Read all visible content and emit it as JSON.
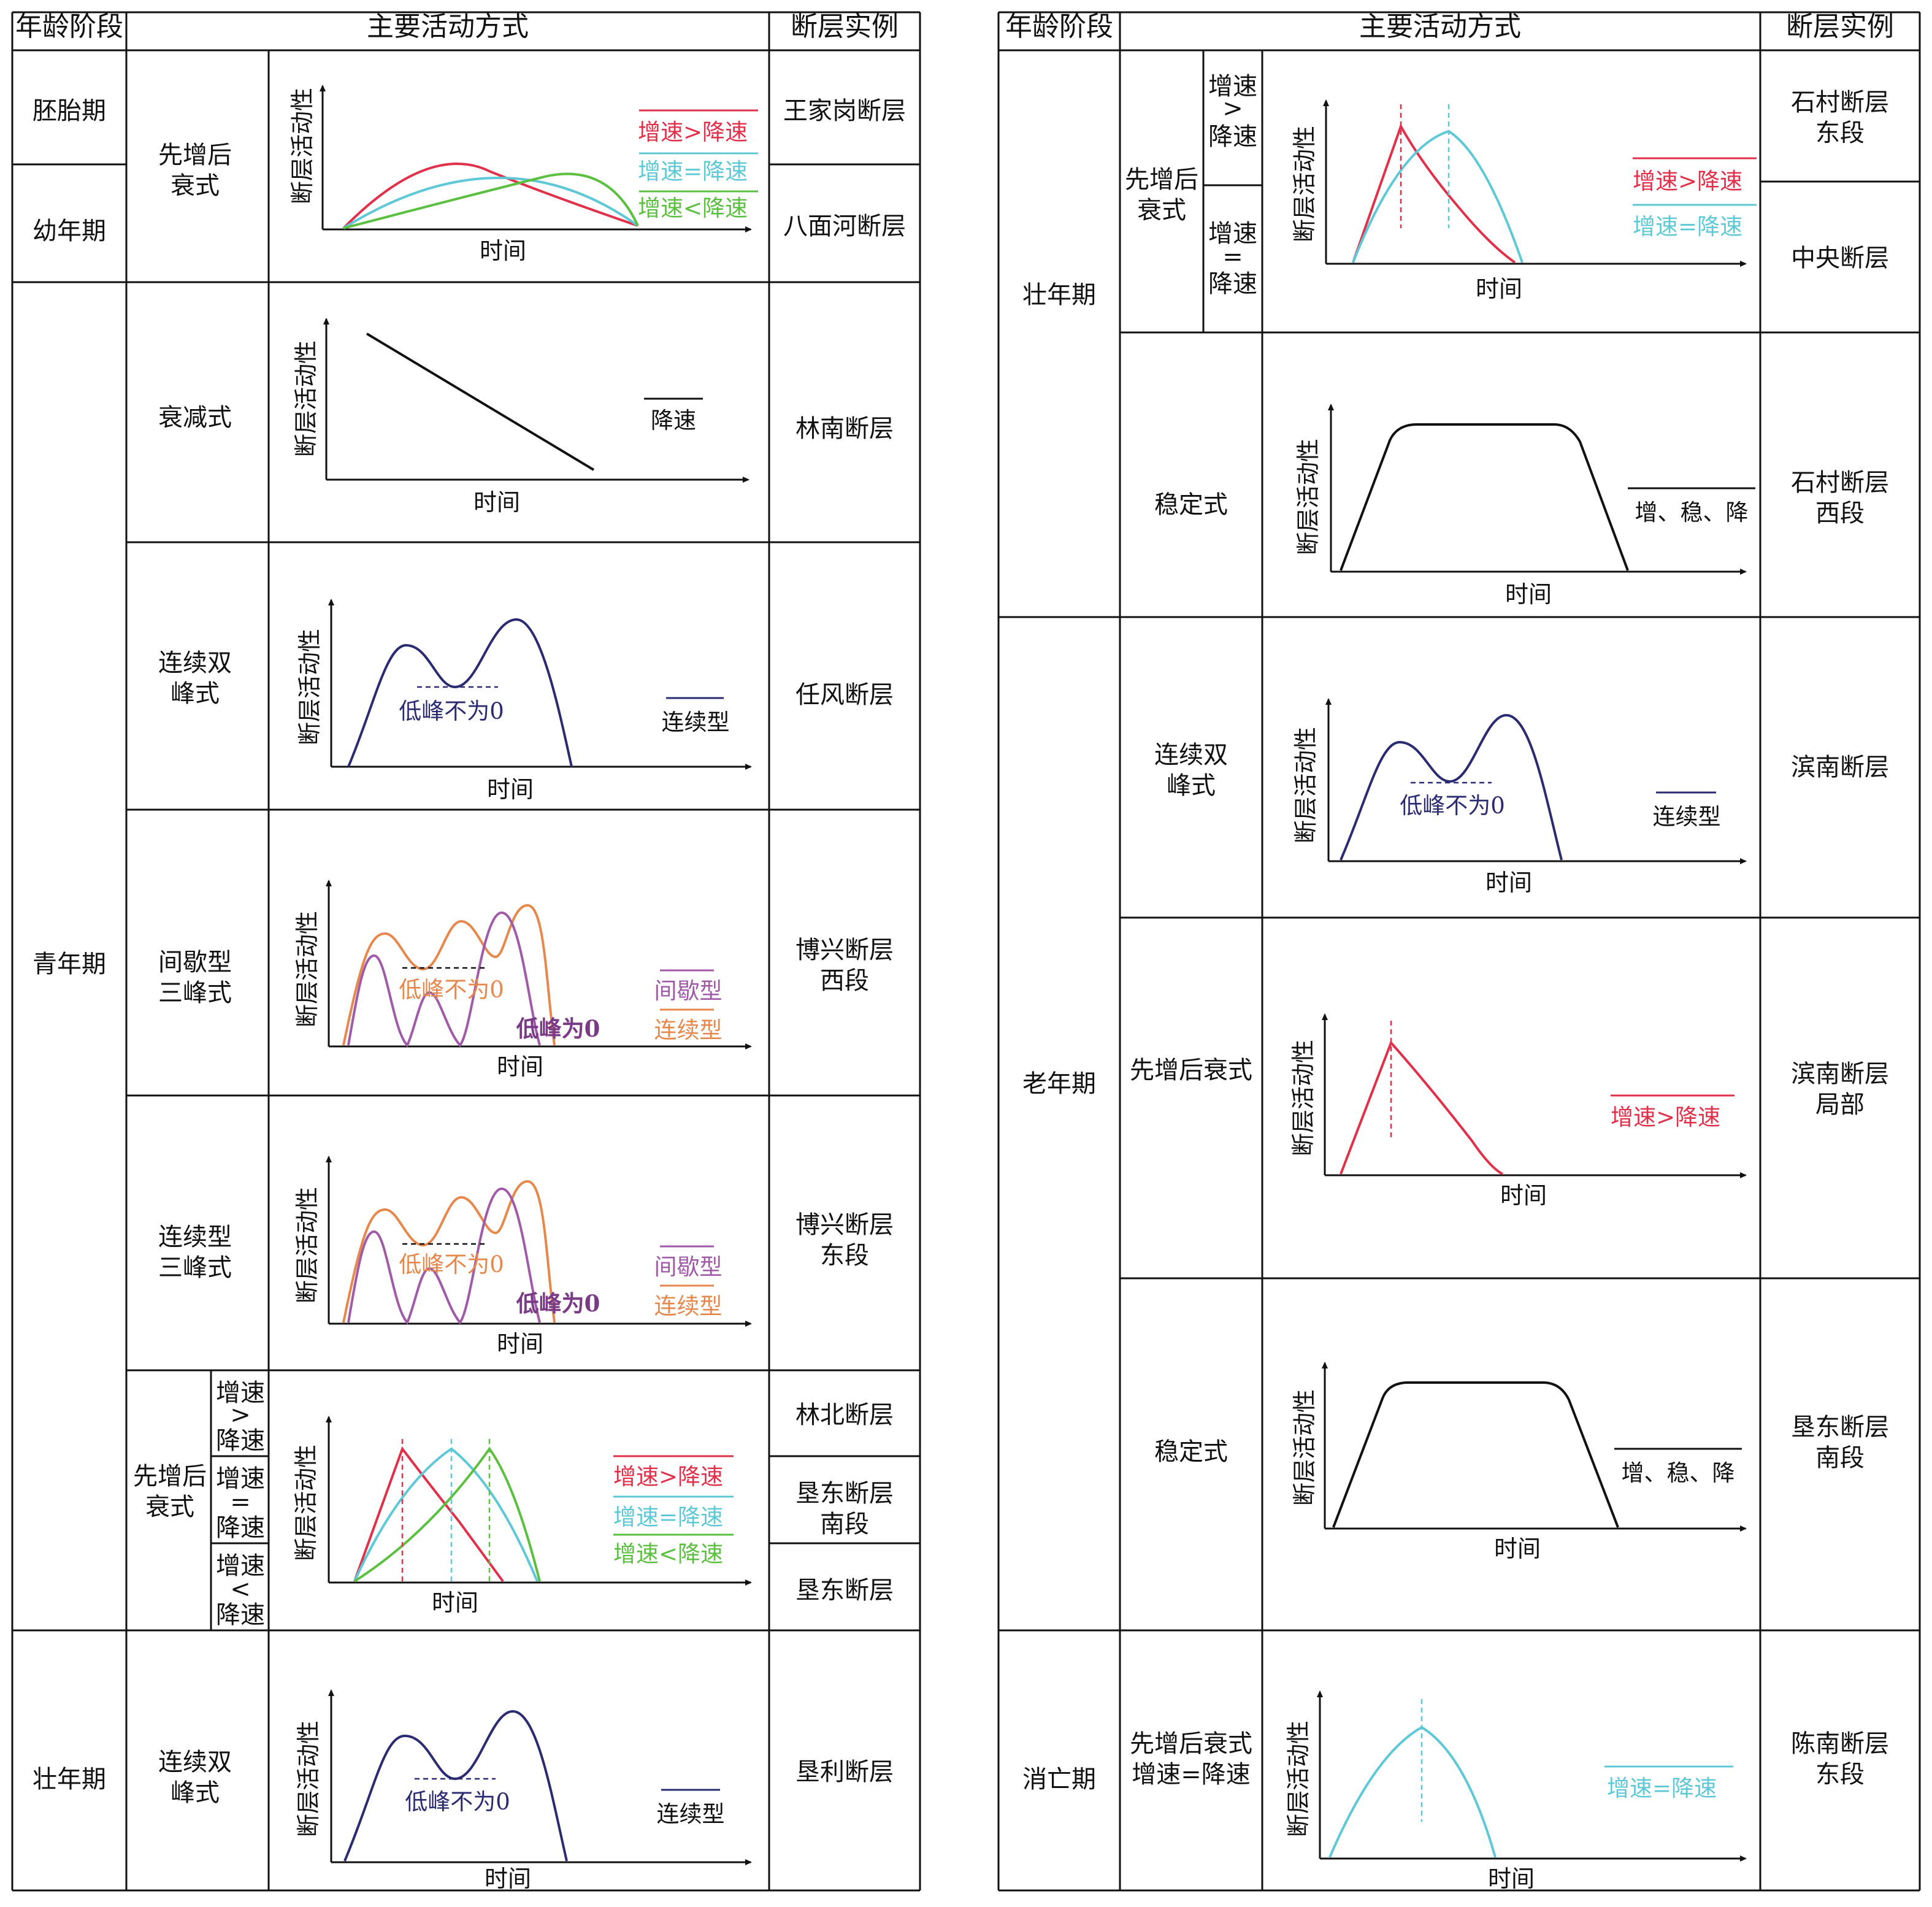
{
  "headers": {
    "age_left": "年龄阶段",
    "mode_left": "主要活动方式",
    "example_left": "断层实例",
    "age_right": "年龄阶段",
    "mode_right": "主要活动方式",
    "example_right": "断层实例"
  },
  "axis": {
    "y": "断层活动性",
    "x": "时间"
  },
  "ages": {
    "embryo": "胚胎期",
    "young": "幼年期",
    "youth": "青年期",
    "prime_left": "壮年期",
    "prime_right": "壮年期",
    "old": "老年期",
    "extinct": "消亡期"
  },
  "modes": {
    "first_inc_dec": "先增后衰式",
    "decay": "衰减式",
    "double_peak": "连续双峰式",
    "intermittent_triple": "间歇型三峰式",
    "continuous_triple": "连续型三峰式",
    "stable": "稳定式",
    "first_inc_dec_equal": "先增后衰式增速=降速"
  },
  "sub": {
    "gt_1": "增速",
    "gt_2": ">",
    "gt_3": "降速",
    "eq_1": "增速",
    "eq_2": "=",
    "eq_3": "降速",
    "lt_1": "增速",
    "lt_2": "<",
    "lt_3": "降速"
  },
  "legend": {
    "gt": "增速>降速",
    "eq": "增速=降速",
    "lt": "增速<降速",
    "decel": "降速",
    "continuous": "连续型",
    "intermittent": "间歇型",
    "stable": "增、稳、降"
  },
  "notes": {
    "trough_nonzero": "低峰不为0",
    "trough_zero": "低峰为0"
  },
  "examples": {
    "wangjiagang": "王家岗断层",
    "bamianhe": "八面河断层",
    "linnan": "林南断层",
    "renfeng": "任风断层",
    "boxing_west": "博兴断层西段",
    "boxing_east": "博兴断层东段",
    "linbei": "林北断层",
    "kendong_south": "垦东断层南段",
    "kendong": "垦东断层",
    "kenli": "垦利断层",
    "shicun_east": "石村断层东段",
    "central": "中央断层",
    "shicun_west": "石村断层西段",
    "binnan": "滨南断层",
    "binnan_local": "滨南断层局部",
    "kendong_south_r": "垦东断层南段",
    "chennan_east": "陈南断层东段"
  },
  "colors": {
    "gt": "#e0304a",
    "eq": "#5ec8d6",
    "lt": "#5bbf40",
    "continuous": "#2b2b72",
    "intermittent": "#a05aa8",
    "cont_orange": "#e6884c",
    "stable": "#111111"
  },
  "chart_data": [
    {
      "chart": "embryo-young",
      "type": "line",
      "series": [
        {
          "name": "增速>降速"
        },
        {
          "name": "增速=降速"
        },
        {
          "name": "增速<降速"
        }
      ]
    },
    {
      "chart": "youth-decay",
      "type": "line",
      "series": [
        {
          "name": "降速"
        }
      ]
    },
    {
      "chart": "youth-double",
      "type": "line",
      "series": [
        {
          "name": "连续型"
        }
      ]
    },
    {
      "chart": "youth-intermittent",
      "type": "line",
      "series": [
        {
          "name": "间歇型"
        },
        {
          "name": "连续型"
        }
      ]
    },
    {
      "chart": "youth-continuous",
      "type": "line",
      "series": [
        {
          "name": "间歇型"
        },
        {
          "name": "连续型"
        }
      ]
    },
    {
      "chart": "youth-first-inc",
      "type": "line",
      "series": [
        {
          "name": "增速>降速"
        },
        {
          "name": "增速=降速"
        },
        {
          "name": "增速<降速"
        }
      ]
    },
    {
      "chart": "prime-left-double",
      "type": "line",
      "series": [
        {
          "name": "连续型"
        }
      ]
    },
    {
      "chart": "prime-right-first-inc",
      "type": "line",
      "series": [
        {
          "name": "增速>降速"
        },
        {
          "name": "增速=降速"
        }
      ]
    },
    {
      "chart": "prime-right-stable",
      "type": "line",
      "series": [
        {
          "name": "增、稳、降"
        }
      ]
    },
    {
      "chart": "old-double",
      "type": "line",
      "series": [
        {
          "name": "连续型"
        }
      ]
    },
    {
      "chart": "old-first-inc",
      "type": "line",
      "series": [
        {
          "name": "增速>降速"
        }
      ]
    },
    {
      "chart": "old-stable",
      "type": "line",
      "series": [
        {
          "name": "增、稳、降"
        }
      ]
    },
    {
      "chart": "extinct",
      "type": "line",
      "series": [
        {
          "name": "增速=降速"
        }
      ]
    }
  ]
}
